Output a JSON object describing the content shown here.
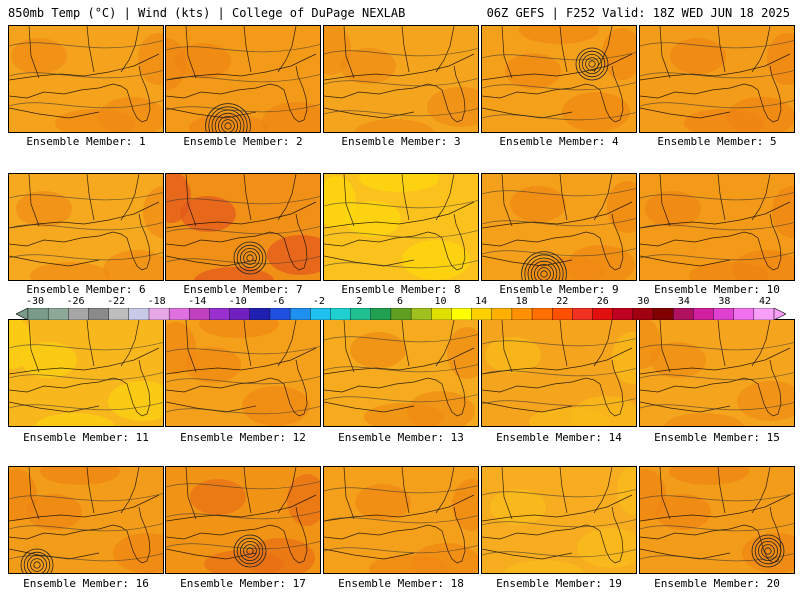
{
  "header": {
    "left": "850mb Temp (°C) | Wind (kts) | College of DuPage NEXLAB",
    "right": "06Z GEFS | F252 Valid: 18Z WED JUN 18 2025"
  },
  "panels": [
    {
      "label": "Ensemble Member: 1",
      "base": "#f5a31c",
      "blob": "#f08a14",
      "low": null
    },
    {
      "label": "Ensemble Member: 2",
      "base": "#f39a18",
      "blob": "#ee8512",
      "low": "bottom"
    },
    {
      "label": "Ensemble Member: 3",
      "base": "#f5a41d",
      "blob": "#f08c14",
      "low": null
    },
    {
      "label": "Ensemble Member: 4",
      "base": "#f4a01b",
      "blob": "#ef8813",
      "low": "top"
    },
    {
      "label": "Ensemble Member: 5",
      "base": "#f39c19",
      "blob": "#ee8512",
      "low": null
    },
    {
      "label": "Ensemble Member: 6",
      "base": "#f6a91f",
      "blob": "#f08c14",
      "low": null
    },
    {
      "label": "Ensemble Member: 7",
      "base": "#f09016",
      "blob": "#e2571c",
      "low": "center"
    },
    {
      "label": "Ensemble Member: 8",
      "base": "#fbc21e",
      "blob": "#fcd80c",
      "low": null
    },
    {
      "label": "Ensemble Member: 9",
      "base": "#f4a01b",
      "blob": "#ef8813",
      "low": "bottom"
    },
    {
      "label": "Ensemble Member: 10",
      "base": "#f39a18",
      "blob": "#ee8512",
      "low": null
    },
    {
      "label": "Ensemble Member: 11",
      "base": "#f9b71e",
      "blob": "#fbd20f",
      "low": null
    },
    {
      "label": "Ensemble Member: 12",
      "base": "#f4a01b",
      "blob": "#ef8813",
      "low": null
    },
    {
      "label": "Ensemble Member: 13",
      "base": "#f6aa1e",
      "blob": "#f08c14",
      "low": null
    },
    {
      "label": "Ensemble Member: 14",
      "base": "#f5a41d",
      "blob": "#f9bc1a",
      "low": null
    },
    {
      "label": "Ensemble Member: 15",
      "base": "#f5a41d",
      "blob": "#f08c14",
      "low": null
    },
    {
      "label": "Ensemble Member: 16",
      "base": "#f39c19",
      "blob": "#ee8512",
      "low": "left"
    },
    {
      "label": "Ensemble Member: 17",
      "base": "#f19416",
      "blob": "#e86f16",
      "low": "center"
    },
    {
      "label": "Ensemble Member: 18",
      "base": "#f4a01b",
      "blob": "#ef8813",
      "low": null
    },
    {
      "label": "Ensemble Member: 19",
      "base": "#f7ad1f",
      "blob": "#f9bc1a",
      "low": null
    },
    {
      "label": "Ensemble Member: 20",
      "base": "#f39c19",
      "blob": "#ee8512",
      "low": "bottomright"
    }
  ],
  "colorbar": {
    "labels": [
      "-30",
      "-26",
      "-22",
      "-18",
      "-14",
      "-10",
      "-6",
      "-2",
      "2",
      "6",
      "10",
      "14",
      "18",
      "22",
      "26",
      "30",
      "34",
      "38",
      "42"
    ],
    "colors": [
      "#7a9a8a",
      "#8da896",
      "#a6a6a6",
      "#8a8a8a",
      "#bdbdbd",
      "#c9c9e8",
      "#e6a8e6",
      "#e070e0",
      "#c040c0",
      "#9b30d0",
      "#7020c0",
      "#2020b0",
      "#2050e0",
      "#2090f0",
      "#20c0f0",
      "#20d0d0",
      "#20c090",
      "#20a050",
      "#60a020",
      "#a0c020",
      "#e0e000",
      "#ffff00",
      "#ffd000",
      "#ffb000",
      "#ff9000",
      "#ff7000",
      "#ff5000",
      "#f03020",
      "#e01010",
      "#c00020",
      "#a00010",
      "#800000",
      "#b01060",
      "#d020a0",
      "#e040d0",
      "#f070f0",
      "#f8a0f8"
    ]
  }
}
